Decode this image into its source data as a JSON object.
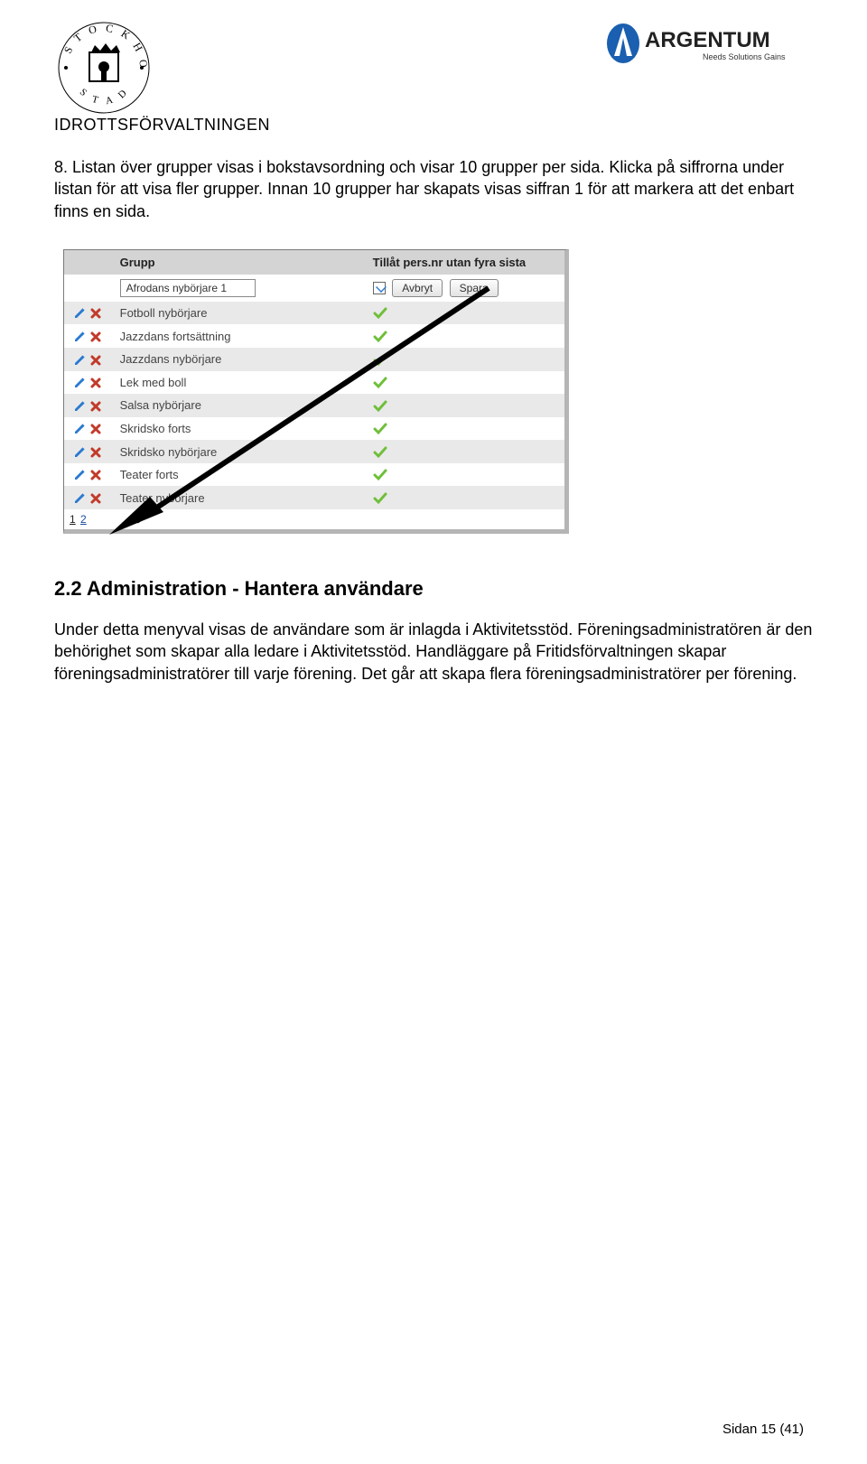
{
  "header": {
    "subtitle": "IDROTTSFÖRVALTNINGEN",
    "right_logo_name": "ARGENTUM",
    "right_logo_tagline": "Needs Solutions Gains"
  },
  "intro": {
    "item_number": "8.",
    "text": "Listan över grupper visas i bokstavsordning och visar 10 grupper per sida. Klicka på siffrorna under listan för att visa fler grupper. Innan 10 grupper har skapats visas siffran 1 för att markera att det enbart finns en sida."
  },
  "table": {
    "col_group": "Grupp",
    "col_allow": "Tillåt pers.nr utan fyra sista",
    "edit_value": "Afrodans nybörjare 1",
    "btn_cancel": "Avbryt",
    "btn_save": "Spara",
    "rows": [
      "Fotboll nybörjare",
      "Jazzdans fortsättning",
      "Jazzdans nybörjare",
      "Lek med boll",
      "Salsa nybörjare",
      "Skridsko forts",
      "Skridsko nybörjare",
      "Teater forts",
      "Teater nybörjare"
    ],
    "pager_current": "1",
    "pager_next": "2"
  },
  "section": {
    "heading": "2.2 Administration - Hantera användare",
    "body": "Under detta menyval visas de användare som är inlagda i Aktivitetsstöd. Föreningsadministratören är den behörighet som skapar alla ledare i Aktivitetsstöd. Handläggare på Fritidsförvaltningen skapar föreningsadministratörer till varje förening. Det går att skapa flera föreningsadministratörer per förening."
  },
  "footer": {
    "text": "Sidan 15 (41)"
  },
  "colors": {
    "check_green": "#6fbf3a",
    "edit_blue": "#2a7ad1",
    "delete_red": "#c13a2a"
  }
}
